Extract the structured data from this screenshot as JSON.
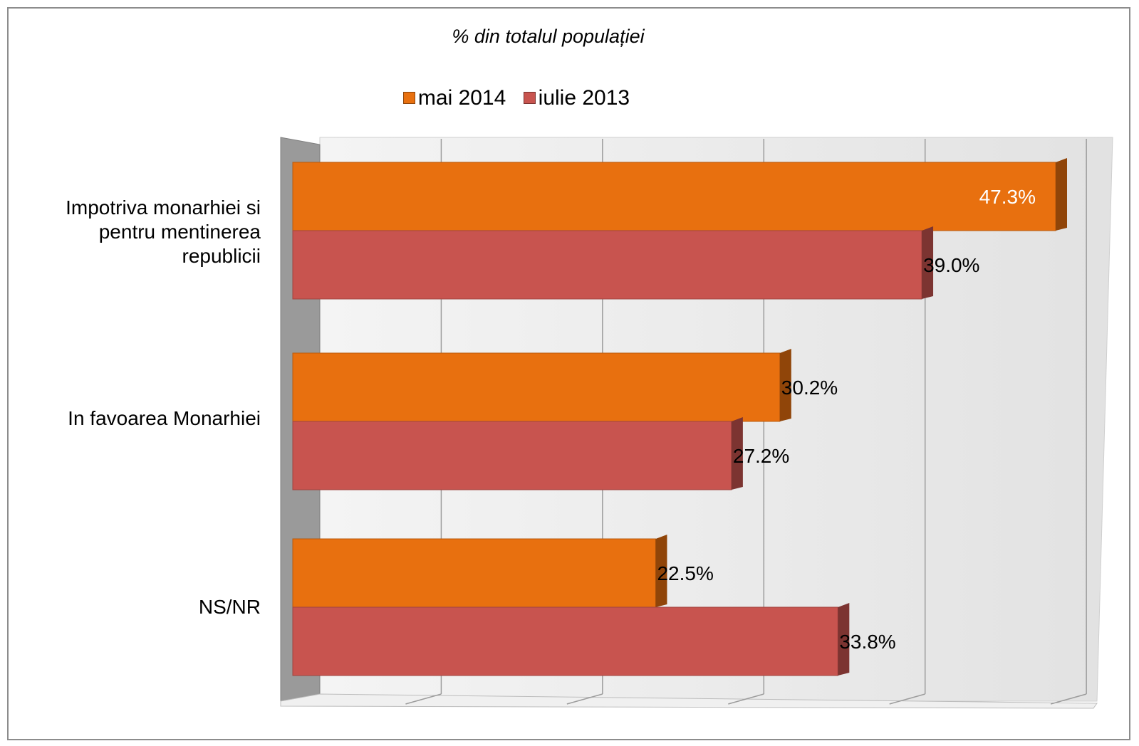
{
  "chart_data": {
    "type": "bar",
    "orientation": "horizontal",
    "title": "% din totalul populației",
    "categories": [
      "Impotriva monarhiei si pentru mentinerea republicii",
      "In favoarea Monarhiei",
      "NS/NR"
    ],
    "series": [
      {
        "name": "mai 2014",
        "values": [
          47.3,
          30.2,
          22.5
        ],
        "labels": [
          "47.3%",
          "30.2%",
          "22.5%"
        ],
        "color": "#E8700F"
      },
      {
        "name": "iulie 2013",
        "values": [
          39.0,
          27.2,
          33.8
        ],
        "labels": [
          "39.0%",
          "27.2%",
          "33.8%"
        ],
        "color": "#C8544F"
      }
    ],
    "xlim": [
      0,
      50
    ],
    "legend_position": "top",
    "grid": true,
    "style": "3d"
  }
}
